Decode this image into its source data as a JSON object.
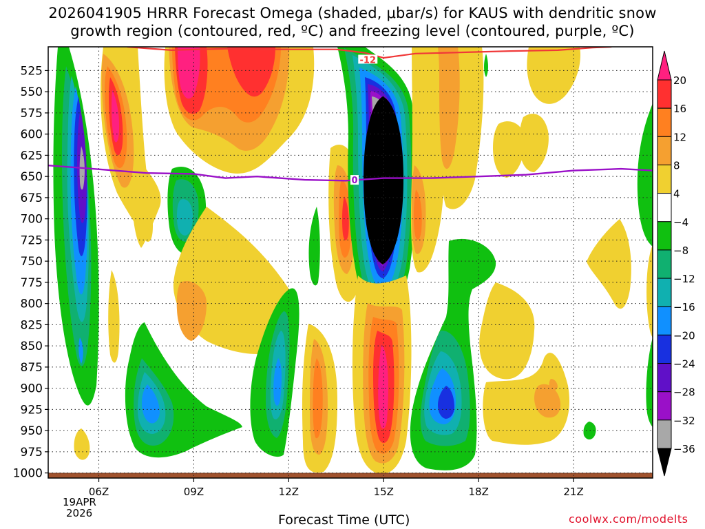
{
  "title": {
    "line1": "2026041905 HRRR Forecast Omega (shaded, μbar/s) for KAUS with dendritic snow",
    "line2": "growth region (contoured, red, ºC) and freezing level (contoured, purple, ºC)"
  },
  "credit": "coolwx.com/modelts",
  "colors": {
    "freezing_line": "#9a10c8",
    "dgz_line": "#f03838",
    "ground": "#a0522d"
  },
  "chart_data": {
    "type": "heatmap",
    "xlabel": "Forecast Time (UTC)",
    "ylabel": "",
    "x_range_hours": [
      4.4,
      23.5
    ],
    "y_range_mb": [
      497,
      1006
    ],
    "y_ticks": [
      "525",
      "550",
      "575",
      "600",
      "625",
      "650",
      "675",
      "700",
      "725",
      "750",
      "775",
      "800",
      "825",
      "850",
      "875",
      "900",
      "925",
      "950",
      "975",
      "1000"
    ],
    "x_ticks": [
      {
        "hour": 6,
        "label": "06Z"
      },
      {
        "hour": 9,
        "label": "09Z"
      },
      {
        "hour": 12,
        "label": "12Z"
      },
      {
        "hour": 15,
        "label": "15Z"
      },
      {
        "hour": 18,
        "label": "18Z"
      },
      {
        "hour": 21,
        "label": "21Z"
      }
    ],
    "date_label": [
      "19APR",
      "2026"
    ],
    "grid": true,
    "colorbar": {
      "levels": [
        20,
        16,
        12,
        8,
        4,
        -4,
        -8,
        -12,
        -16,
        -20,
        -24,
        -28,
        -32,
        -36
      ],
      "labels": [
        "20",
        "16",
        "12",
        "8",
        "4",
        "−4",
        "−8",
        "−12",
        "−16",
        "−20",
        "−24",
        "−28",
        "−32",
        "−36"
      ],
      "colors": [
        "#ff2080",
        "#ff3030",
        "#ff8020",
        "#f5a030",
        "#f0d030",
        "#ffffff",
        "#10c010",
        "#10b070",
        "#10b0b0",
        "#1090ff",
        "#1830e0",
        "#6010c8",
        "#9a10c8",
        "#a8a8a8",
        "#000000"
      ]
    },
    "freezing_level": {
      "label": "0",
      "points": [
        [
          4.4,
          637
        ],
        [
          5.5,
          640
        ],
        [
          6.5,
          643
        ],
        [
          7.5,
          646
        ],
        [
          9.0,
          647
        ],
        [
          10.0,
          652
        ],
        [
          11.0,
          650
        ],
        [
          12.5,
          654
        ],
        [
          13.8,
          655
        ],
        [
          15.0,
          652
        ],
        [
          16.5,
          652
        ],
        [
          18.0,
          650
        ],
        [
          19.5,
          648
        ],
        [
          21.0,
          643
        ],
        [
          22.5,
          641
        ],
        [
          23.5,
          643
        ]
      ]
    },
    "dgz_contour": {
      "label": "-12",
      "points": [
        [
          6.9,
          497
        ],
        [
          7.6,
          499
        ],
        [
          8.3,
          501
        ],
        [
          9.2,
          500
        ],
        [
          10.2,
          499
        ],
        [
          11.5,
          500
        ],
        [
          13.5,
          500
        ],
        [
          14.4,
          504
        ],
        [
          15.0,
          510
        ],
        [
          16.0,
          505
        ],
        [
          17.0,
          504
        ],
        [
          18.0,
          503
        ],
        [
          19.0,
          502
        ],
        [
          20.5,
          501
        ],
        [
          21.6,
          498
        ],
        [
          22.2,
          497
        ]
      ]
    },
    "omega_cells": [
      {
        "t": 6.05,
        "p": 640,
        "dt": 0.65,
        "dp": 340,
        "v": -36
      },
      {
        "t": 7.1,
        "p": 620,
        "dt": 0.35,
        "dp": 110,
        "v": 14
      },
      {
        "t": 8.6,
        "p": 855,
        "dt": 0.7,
        "dp": 110,
        "v": -17
      },
      {
        "t": 9.6,
        "p": 525,
        "dt": 0.8,
        "dp": 70,
        "v": 20
      },
      {
        "t": 10.9,
        "p": 550,
        "dt": 0.6,
        "dp": 70,
        "v": 16
      },
      {
        "t": 9.2,
        "p": 775,
        "dt": 0.6,
        "dp": 50,
        "v": 11
      },
      {
        "t": 9.1,
        "p": 680,
        "dt": 0.35,
        "dp": 70,
        "v": -14
      },
      {
        "t": 12.2,
        "p": 850,
        "dt": 0.35,
        "dp": 90,
        "v": -13
      },
      {
        "t": 13.0,
        "p": 870,
        "dt": 0.25,
        "dp": 80,
        "v": 14
      },
      {
        "t": 14.0,
        "p": 680,
        "dt": 0.25,
        "dp": 80,
        "v": 18
      },
      {
        "t": 15.0,
        "p": 630,
        "dt": 0.7,
        "dp": 140,
        "v": -36
      },
      {
        "t": 15.0,
        "p": 870,
        "dt": 0.4,
        "dp": 100,
        "v": 20
      },
      {
        "t": 16.1,
        "p": 650,
        "dt": 0.25,
        "dp": 60,
        "v": 16
      },
      {
        "t": 16.3,
        "p": 560,
        "dt": 0.2,
        "dp": 60,
        "v": 12
      },
      {
        "t": 16.9,
        "p": 885,
        "dt": 0.55,
        "dp": 60,
        "v": -20
      },
      {
        "t": 17.3,
        "p": 550,
        "dt": 0.4,
        "dp": 60,
        "v": 10
      },
      {
        "t": 19.7,
        "p": 880,
        "dt": 0.4,
        "dp": 40,
        "v": 12
      },
      {
        "t": 23.4,
        "p": 630,
        "dt": 0.4,
        "dp": 120,
        "v": -8
      },
      {
        "t": 21.3,
        "p": 735,
        "dt": 0.4,
        "dp": 40,
        "v": 6
      }
    ]
  }
}
